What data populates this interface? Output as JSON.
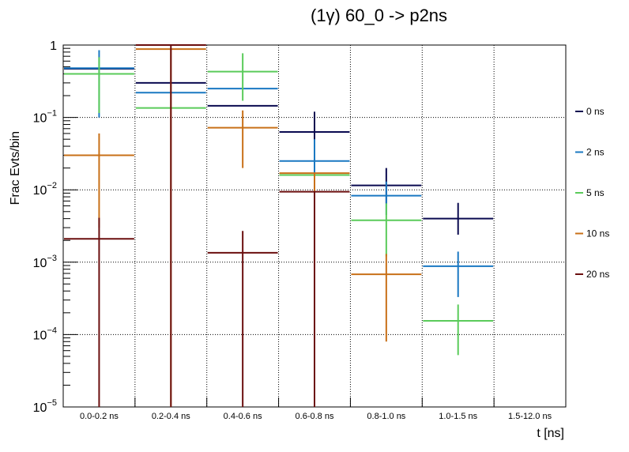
{
  "chart_data": {
    "type": "scatter",
    "title": "(1γ) 60_0 -> p2ns",
    "xlabel": "t [ns]",
    "ylabel": "Frac Evts/bin",
    "yscale": "log",
    "ylim": [
      1e-05,
      1
    ],
    "grid": true,
    "legend_position": "right",
    "categories": [
      "0.0-0.2 ns",
      "0.2-0.4 ns",
      "0.4-0.6 ns",
      "0.6-0.8 ns",
      "0.8-1.0 ns",
      "1.0-1.5 ns",
      "1.5-12.0 ns"
    ],
    "y_tick_labels": [
      {
        "base": "10",
        "exp": "−5",
        "value": 1e-05
      },
      {
        "base": "10",
        "exp": "−4",
        "value": 0.0001
      },
      {
        "base": "10",
        "exp": "−3",
        "value": 0.001
      },
      {
        "base": "10",
        "exp": "−2",
        "value": 0.01
      },
      {
        "base": "10",
        "exp": "−1",
        "value": 0.1
      },
      {
        "base": "1",
        "exp": "",
        "value": 1
      }
    ],
    "series": [
      {
        "name": "0 ns",
        "color": "#0a0a50",
        "values": [
          0.47,
          0.3,
          0.145,
          0.063,
          0.0115,
          0.004,
          null
        ],
        "err_low": [
          0.47,
          0.3,
          0.145,
          0.036,
          0.0065,
          0.0024,
          null
        ],
        "err_high": [
          0.47,
          0.3,
          0.145,
          0.12,
          0.02,
          0.0066,
          null
        ]
      },
      {
        "name": "2 ns",
        "color": "#1a78c2",
        "values": [
          0.48,
          0.22,
          0.25,
          0.025,
          0.0083,
          0.00088,
          null
        ],
        "err_low": [
          0.1,
          0.22,
          0.25,
          0.013,
          0.0045,
          0.00033,
          null
        ],
        "err_high": [
          0.85,
          0.22,
          0.25,
          0.05,
          0.013,
          0.0014,
          null
        ]
      },
      {
        "name": "5 ns",
        "color": "#5acb5a",
        "values": [
          0.4,
          0.135,
          0.43,
          0.016,
          0.0038,
          0.000155,
          null
        ],
        "err_low": [
          0.115,
          0.135,
          0.17,
          0.016,
          0.0012,
          5.2e-05,
          null
        ],
        "err_high": [
          0.68,
          0.135,
          0.77,
          0.016,
          0.0065,
          0.00026,
          null
        ]
      },
      {
        "name": "10 ns",
        "color": "#c87018",
        "values": [
          0.03,
          0.88,
          0.072,
          0.017,
          0.00068,
          null,
          null
        ],
        "err_low": [
          0.003,
          1e-05,
          0.02,
          1e-05,
          8e-05,
          null,
          null
        ],
        "err_high": [
          0.06,
          0.88,
          0.125,
          0.017,
          0.0013,
          null,
          null
        ]
      },
      {
        "name": "20 ns",
        "color": "#6b0f0f",
        "values": [
          0.0021,
          1.0,
          0.00135,
          0.0094,
          null,
          null,
          null
        ],
        "err_low": [
          1e-05,
          1e-05,
          1e-05,
          1e-05,
          null,
          null,
          null
        ],
        "err_high": [
          0.0041,
          1.0,
          0.0027,
          0.0094,
          null,
          null,
          null
        ]
      }
    ]
  }
}
